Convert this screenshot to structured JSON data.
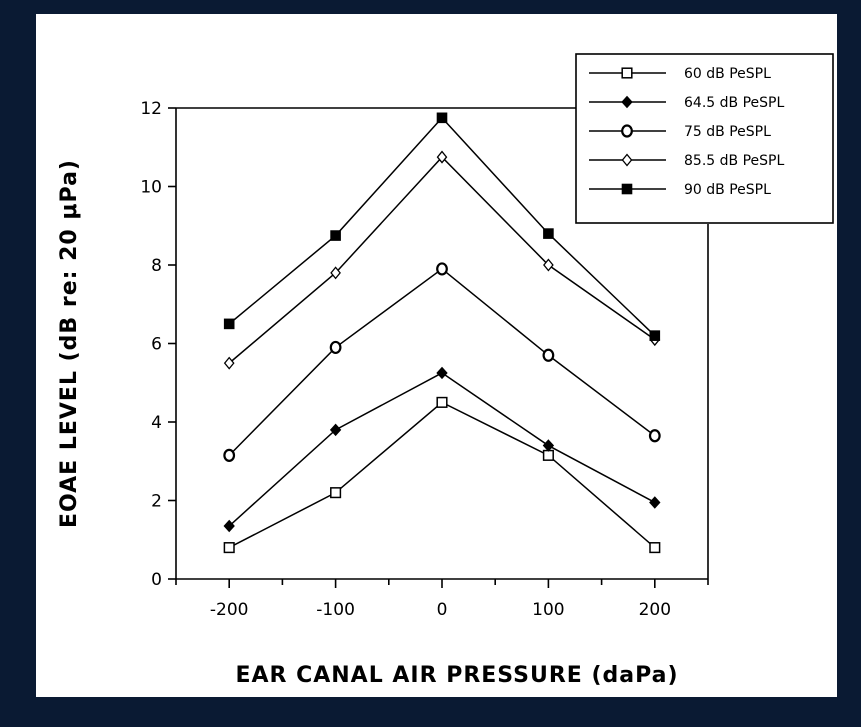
{
  "chart_data": {
    "type": "line",
    "xlabel": "EAR CANAL AIR PRESSURE (daPa)",
    "ylabel": "EOAE LEVEL (dB re: 20 μPa)",
    "x": [
      -200,
      -100,
      0,
      100,
      200
    ],
    "xticks": [
      "-200",
      "-100",
      "0",
      "100",
      "200"
    ],
    "xlim": [
      -250,
      250
    ],
    "ylim": [
      0,
      12
    ],
    "yticks": [
      "0",
      "2",
      "4",
      "6",
      "8",
      "10",
      "12"
    ],
    "legend_position": "top-right",
    "series": [
      {
        "name": "60 dB PeSPL",
        "marker": "open-square",
        "values": [
          0.8,
          2.2,
          4.5,
          3.15,
          0.8
        ]
      },
      {
        "name": "64.5 dB PeSPL",
        "marker": "filled-diamond",
        "values": [
          1.35,
          3.8,
          5.25,
          3.4,
          1.95
        ]
      },
      {
        "name": "75 dB PeSPL",
        "marker": "open-circle",
        "values": [
          3.15,
          5.9,
          7.9,
          5.7,
          3.65
        ]
      },
      {
        "name": "85.5 dB PeSPL",
        "marker": "open-diamond",
        "values": [
          5.5,
          7.8,
          10.75,
          8.0,
          6.1
        ]
      },
      {
        "name": "90 dB PeSPL",
        "marker": "filled-square",
        "values": [
          6.5,
          8.75,
          11.75,
          8.8,
          6.2
        ]
      }
    ]
  }
}
